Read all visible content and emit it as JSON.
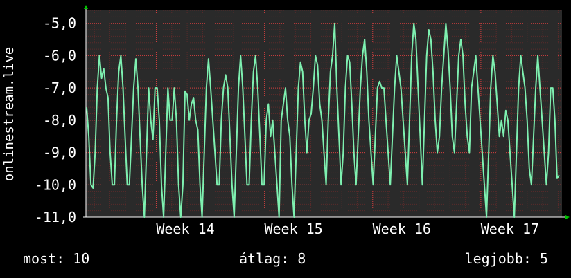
{
  "chart_data": {
    "type": "line",
    "ylabel": "onlinestream.live",
    "ylim": [
      -11,
      -4.6
    ],
    "y_ticks": [
      "-5,0",
      "-6,0",
      "-7,0",
      "-8,0",
      "-9,0",
      "-10,0",
      "-11,0"
    ],
    "y_tick_values": [
      -5,
      -6,
      -7,
      -8,
      -9,
      -10,
      -11
    ],
    "x_range_weeks": [
      13.35,
      17.75
    ],
    "x_ticks": [
      {
        "label": "Week 14",
        "week": 14
      },
      {
        "label": "Week 15",
        "week": 15
      },
      {
        "label": "Week 16",
        "week": 16
      },
      {
        "label": "Week 17",
        "week": 17
      }
    ],
    "grid": true,
    "series": [
      {
        "color": "#7ef0b0",
        "values": [
          -7.6,
          -8.5,
          -10.0,
          -10.1,
          -9.0,
          -7.0,
          -6.0,
          -6.7,
          -6.4,
          -7.0,
          -7.3,
          -9.0,
          -10.0,
          -10.0,
          -8.0,
          -6.5,
          -6.0,
          -7.0,
          -8.5,
          -10.0,
          -10.0,
          -8.5,
          -7.0,
          -6.1,
          -7.0,
          -8.5,
          -10.0,
          -11.0,
          -9.0,
          -7.0,
          -8.0,
          -8.6,
          -7.0,
          -7.0,
          -8.0,
          -10.0,
          -11.0,
          -9.0,
          -7.0,
          -8.0,
          -8.0,
          -7.0,
          -8.0,
          -10.0,
          -11.0,
          -10.0,
          -7.1,
          -7.2,
          -8.0,
          -7.5,
          -7.3,
          -8.0,
          -8.3,
          -10.0,
          -11.0,
          -9.0,
          -7.0,
          -6.1,
          -7.0,
          -8.0,
          -9.0,
          -10.0,
          -10.0,
          -8.0,
          -7.0,
          -6.6,
          -7.0,
          -8.5,
          -10.0,
          -11.0,
          -9.0,
          -7.0,
          -6.0,
          -7.0,
          -8.5,
          -10.0,
          -10.0,
          -8.0,
          -6.5,
          -6.0,
          -7.0,
          -8.5,
          -10.0,
          -10.0,
          -8.0,
          -7.5,
          -8.5,
          -8.0,
          -9.0,
          -10.0,
          -11.0,
          -8.0,
          -7.5,
          -7.0,
          -8.0,
          -8.5,
          -10.0,
          -11.0,
          -9.0,
          -7.0,
          -6.2,
          -6.5,
          -8.0,
          -9.0,
          -8.0,
          -7.8,
          -7.0,
          -6.0,
          -6.3,
          -7.5,
          -8.0,
          -9.0,
          -10.0,
          -8.0,
          -6.5,
          -6.0,
          -5.0,
          -7.0,
          -8.5,
          -10.0,
          -9.0,
          -7.0,
          -6.0,
          -6.2,
          -7.5,
          -9.0,
          -10.0,
          -8.5,
          -7.0,
          -6.0,
          -5.5,
          -6.5,
          -8.0,
          -9.0,
          -10.0,
          -8.5,
          -7.0,
          -6.8,
          -7.0,
          -7.0,
          -8.0,
          -9.0,
          -10.0,
          -8.5,
          -7.0,
          -6.0,
          -6.5,
          -7.0,
          -8.0,
          -9.0,
          -10.0,
          -8.0,
          -6.0,
          -5.0,
          -5.5,
          -7.0,
          -8.5,
          -10.0,
          -8.0,
          -6.0,
          -5.2,
          -5.5,
          -6.5,
          -8.0,
          -9.0,
          -8.5,
          -7.0,
          -6.0,
          -5.0,
          -5.8,
          -7.0,
          -8.5,
          -9.0,
          -7.5,
          -6.0,
          -5.5,
          -6.0,
          -7.5,
          -8.5,
          -9.0,
          -7.0,
          -6.5,
          -6.0,
          -7.0,
          -8.0,
          -9.0,
          -10.0,
          -11.0,
          -9.0,
          -7.0,
          -6.0,
          -6.5,
          -7.5,
          -8.5,
          -8.0,
          -8.5,
          -7.7,
          -8.0,
          -9.0,
          -10.0,
          -11.0,
          -9.0,
          -7.0,
          -6.0,
          -6.5,
          -7.0,
          -8.0,
          -9.5,
          -10.0,
          -8.5,
          -7.0,
          -6.0,
          -7.0,
          -8.0,
          -9.0,
          -10.0,
          -9.0,
          -7.0,
          -7.0,
          -8.0,
          -9.8,
          -9.7
        ]
      }
    ]
  },
  "stats": {
    "current": "most: 10",
    "average": "átlag: 8",
    "max": "legjobb: 5"
  },
  "colors": {
    "background": "#000000",
    "plot_background": "#2a2a2a",
    "grid_major": "#d04040",
    "grid_minor": "#5a2a2a",
    "line": "#7ef0b0",
    "axis_arrow": "#00c000",
    "text": "#ffffff"
  }
}
